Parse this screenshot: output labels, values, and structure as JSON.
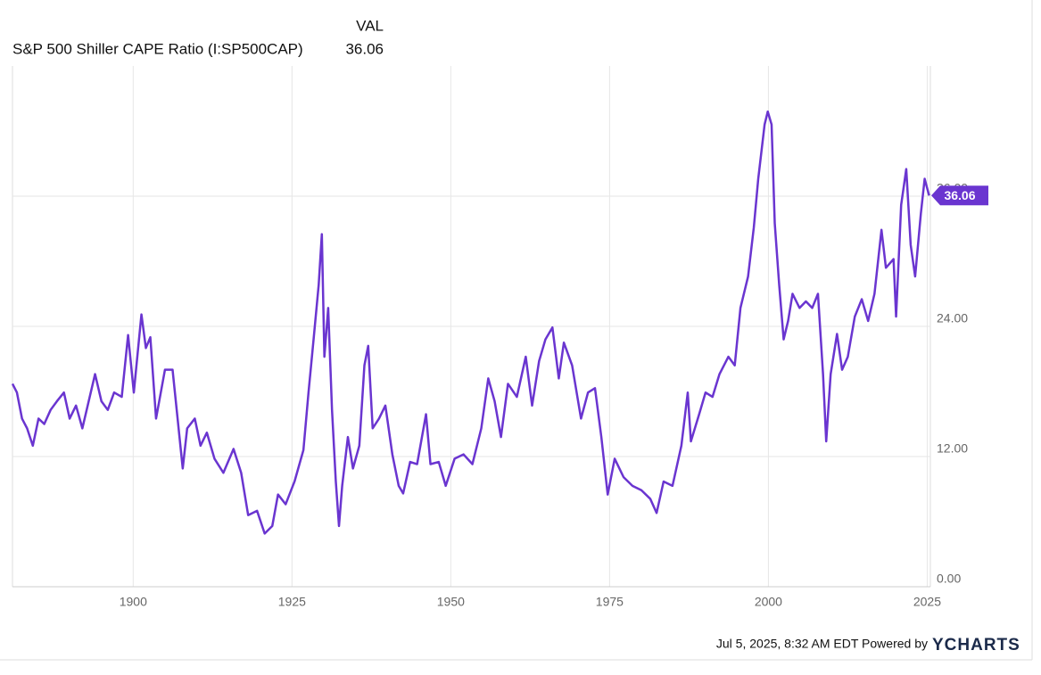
{
  "chart_data": {
    "type": "line",
    "column_header": "VAL",
    "x": [
      1881,
      1881.7,
      1882.5,
      1883.3,
      1884.2,
      1885.1,
      1886,
      1887,
      1888,
      1889.1,
      1890,
      1891,
      1892,
      1893,
      1894,
      1895,
      1896,
      1897,
      1898.2,
      1899.2,
      1900.1,
      1901.3,
      1902,
      1902.7,
      1903.6,
      1905,
      1906.2,
      1907.8,
      1908.5,
      1909.7,
      1910.6,
      1911.6,
      1912.8,
      1914.2,
      1915.8,
      1917,
      1918.1,
      1919.5,
      1920.7,
      1921.9,
      1922.8,
      1924,
      1925.4,
      1926.8,
      1927.6,
      1928.4,
      1929.2,
      1929.7,
      1930.1,
      1930.7,
      1931.3,
      1931.9,
      1932.4,
      1932.9,
      1933.8,
      1934.6,
      1935.6,
      1936.4,
      1937,
      1937.7,
      1938.7,
      1939.7,
      1940.8,
      1941.8,
      1942.5,
      1943.6,
      1944.7,
      1946.1,
      1946.8,
      1948.1,
      1949.2,
      1950.6,
      1952,
      1953.4,
      1954.8,
      1955.9,
      1956.9,
      1957.9,
      1959,
      1960.4,
      1961.8,
      1962.8,
      1963.9,
      1964.9,
      1966,
      1967,
      1967.8,
      1969.1,
      1970.5,
      1971.6,
      1972.7,
      1973.7,
      1974.7,
      1975.8,
      1977.2,
      1978.6,
      1980,
      1981.4,
      1982.4,
      1983.5,
      1984.9,
      1986.3,
      1987.3,
      1987.8,
      1989.1,
      1990.1,
      1991.2,
      1992.3,
      1993.7,
      1994.7,
      1995.6,
      1996.8,
      1997.7,
      1998.4,
      1999.4,
      1999.9,
      2000.5,
      2001,
      2001.7,
      2002.4,
      2003.1,
      2003.8,
      2004.9,
      2005.9,
      2006.9,
      2007.8,
      2008.6,
      2009.1,
      2009.8,
      2010.8,
      2011.6,
      2012.5,
      2013.6,
      2014.7,
      2015.7,
      2016.7,
      2017.8,
      2018.5,
      2019.7,
      2020.1,
      2020.9,
      2021.7,
      2022.4,
      2023.1,
      2024,
      2024.6,
      2025.3
    ],
    "series": [
      {
        "name": "S&P 500 Shiller CAPE Ratio (I:SP500CAP)",
        "color": "#6a35d0",
        "values": [
          18.7,
          17.9,
          15.5,
          14.6,
          13,
          15.5,
          15,
          16.3,
          17.1,
          17.9,
          15.5,
          16.7,
          14.6,
          17.1,
          19.6,
          17.1,
          16.3,
          17.9,
          17.5,
          23.2,
          17.9,
          25.1,
          22,
          23,
          15.5,
          20,
          20,
          10.9,
          14.6,
          15.5,
          13,
          14.2,
          11.8,
          10.5,
          12.7,
          10.5,
          6.6,
          7,
          4.9,
          5.6,
          8.5,
          7.6,
          9.7,
          12.6,
          17.9,
          22.8,
          27.8,
          32.5,
          21.2,
          25.7,
          16.3,
          9.7,
          5.6,
          9.3,
          13.8,
          10.9,
          13,
          20.4,
          22.2,
          14.6,
          15.5,
          16.7,
          12.2,
          9.3,
          8.6,
          11.5,
          11.3,
          15.9,
          11.3,
          11.5,
          9.3,
          11.8,
          12.2,
          11.3,
          14.6,
          19.2,
          17.1,
          13.8,
          18.7,
          17.5,
          21.2,
          16.7,
          20.8,
          22.8,
          23.9,
          19.2,
          22.5,
          20.4,
          15.5,
          17.9,
          18.3,
          13.8,
          8.5,
          11.8,
          10.1,
          9.3,
          8.9,
          8.1,
          6.8,
          9.7,
          9.3,
          13,
          17.9,
          13.4,
          15.9,
          17.9,
          17.5,
          19.6,
          21.2,
          20.4,
          25.7,
          28.6,
          33.1,
          37.6,
          42.6,
          43.8,
          42.6,
          33.5,
          27.8,
          22.8,
          24.5,
          27,
          25.7,
          26.3,
          25.7,
          27,
          19.6,
          13.4,
          19.6,
          23.3,
          20,
          21.2,
          24.9,
          26.5,
          24.5,
          27,
          32.9,
          29.4,
          30.2,
          24.9,
          35.2,
          38.5,
          31.5,
          28.6,
          34.4,
          37.6,
          36.06
        ]
      }
    ],
    "xlim": [
      1881,
      2025.5
    ],
    "xticks": [
      1900,
      1925,
      1950,
      1975,
      2000,
      2025
    ],
    "ylim": [
      0,
      48
    ],
    "yticks": [
      {
        "value": 0,
        "label": "0.00"
      },
      {
        "value": 12,
        "label": "12.00"
      },
      {
        "value": 24,
        "label": "24.00"
      },
      {
        "value": 36,
        "label": "36.00"
      }
    ],
    "grid": true,
    "footer": {
      "timestamp": "Jul 5, 2025, 8:32 AM EDT Powered by",
      "brand": "YCHARTS"
    }
  }
}
